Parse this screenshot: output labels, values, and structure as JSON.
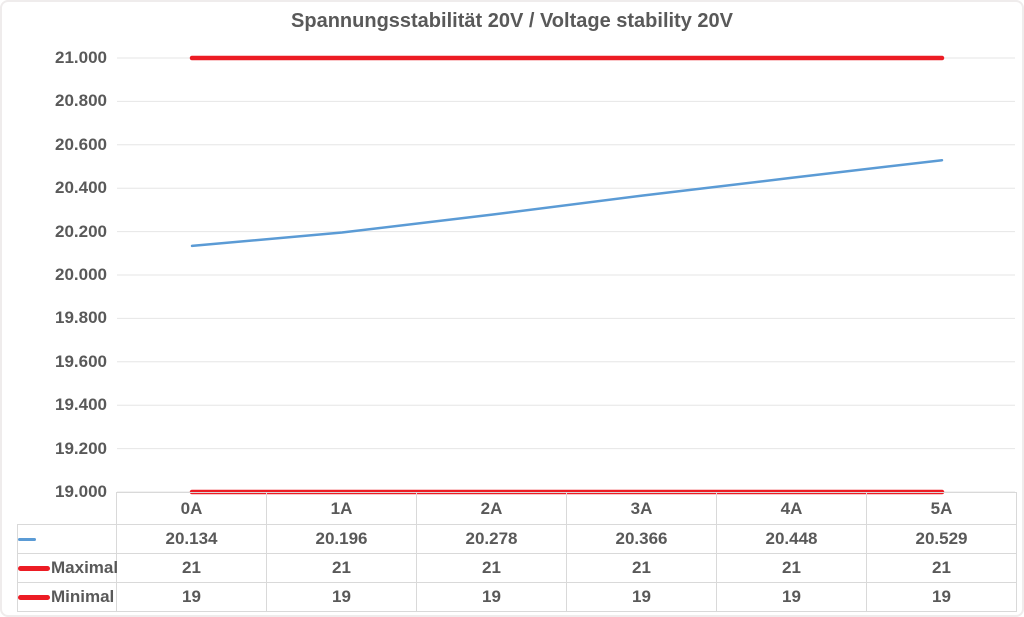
{
  "title": "Spannungsstabilität 20V / Voltage stability 20V",
  "chart_data": {
    "type": "line",
    "title": "Spannungsstabilität 20V / Voltage stability 20V",
    "xlabel": "",
    "ylabel": "",
    "categories": [
      "0A",
      "1A",
      "2A",
      "3A",
      "4A",
      "5A"
    ],
    "series": [
      {
        "name": "",
        "color": "#5B9BD5",
        "line_width": 2.5,
        "values": [
          20.134,
          20.196,
          20.278,
          20.366,
          20.448,
          20.529
        ],
        "display_values": [
          "20.134",
          "20.196",
          "20.278",
          "20.366",
          "20.448",
          "20.529"
        ]
      },
      {
        "name": "Maximal",
        "color": "#EC1C24",
        "line_width": 4.5,
        "values": [
          21,
          21,
          21,
          21,
          21,
          21
        ],
        "display_values": [
          "21",
          "21",
          "21",
          "21",
          "21",
          "21"
        ]
      },
      {
        "name": "Minimal",
        "color": "#EC1C24",
        "line_width": 4.5,
        "values": [
          19,
          19,
          19,
          19,
          19,
          19
        ],
        "display_values": [
          "19",
          "19",
          "19",
          "19",
          "19",
          "19"
        ]
      }
    ],
    "ylim": [
      19,
      21
    ],
    "yticks": [
      {
        "value": 21.0,
        "label": "21.000"
      },
      {
        "value": 20.8,
        "label": "20.800"
      },
      {
        "value": 20.6,
        "label": "20.600"
      },
      {
        "value": 20.4,
        "label": "20.400"
      },
      {
        "value": 20.2,
        "label": "20.200"
      },
      {
        "value": 20.0,
        "label": "20.000"
      },
      {
        "value": 19.8,
        "label": "19.800"
      },
      {
        "value": 19.6,
        "label": "19.600"
      },
      {
        "value": 19.4,
        "label": "19.400"
      },
      {
        "value": 19.2,
        "label": "19.200"
      },
      {
        "value": 19.0,
        "label": "19.000"
      }
    ],
    "grid": true,
    "legend_position": "data-table-left"
  },
  "colors": {
    "text": "#595959",
    "gridline": "#E6E6E6",
    "table_border": "#D9D9D9",
    "background": "#FFFFFF"
  }
}
